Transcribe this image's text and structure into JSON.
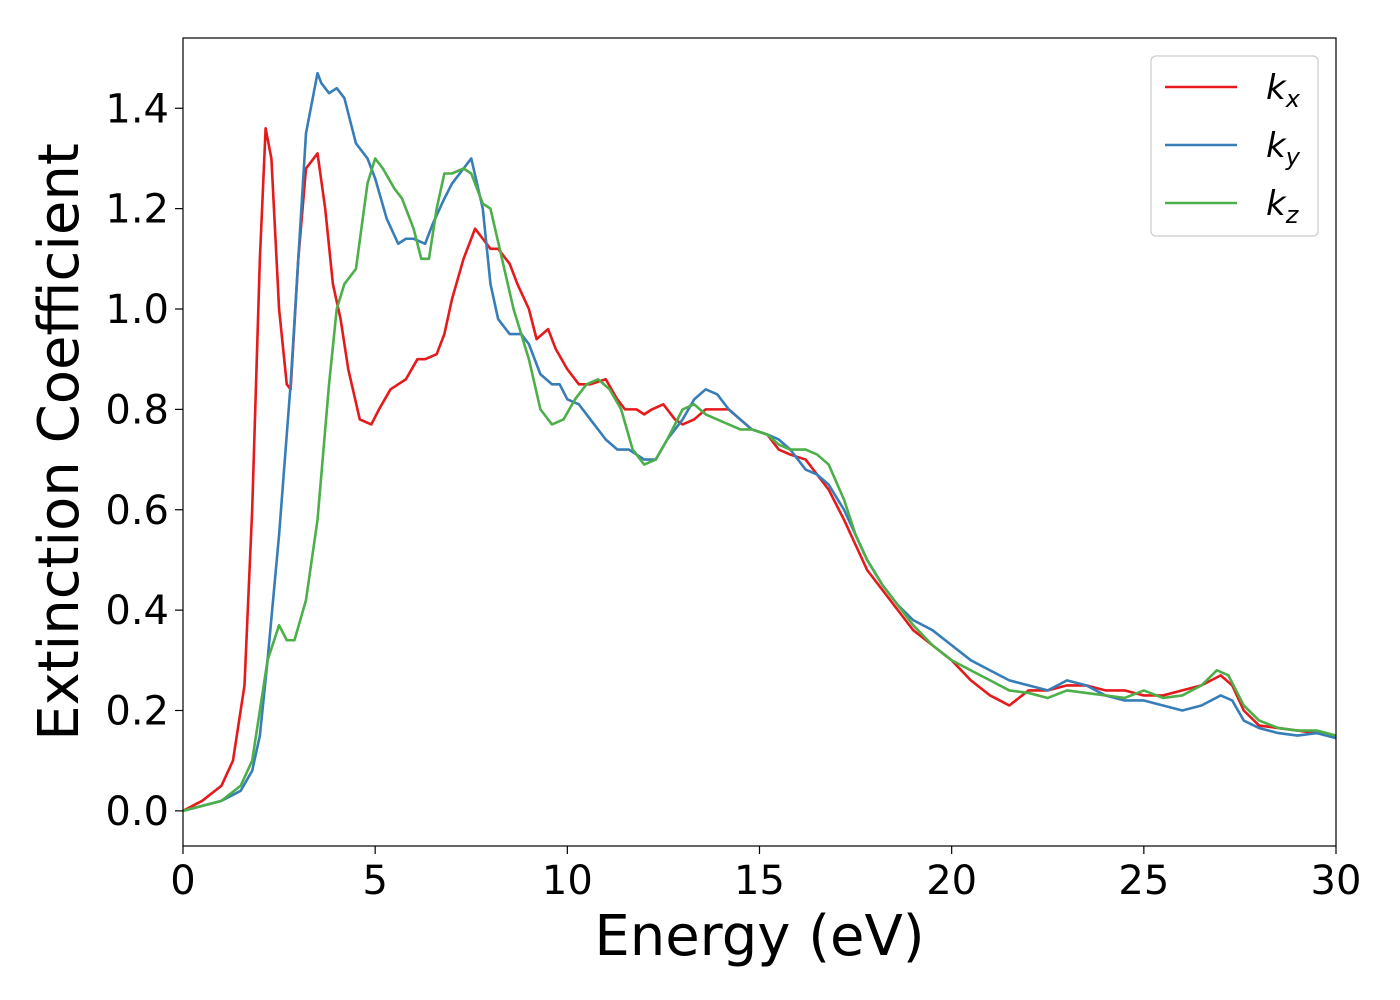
{
  "chart_data": {
    "type": "line",
    "xlabel": "Energy (eV)",
    "ylabel": "Extinction Coefficient",
    "xlim": [
      0,
      30
    ],
    "ylim": [
      -0.07,
      1.54
    ],
    "xticks": [
      0,
      5,
      10,
      15,
      20,
      25,
      30
    ],
    "xtick_labels": [
      "0",
      "5",
      "10",
      "15",
      "20",
      "25",
      "30"
    ],
    "yticks": [
      0.0,
      0.2,
      0.4,
      0.6,
      0.8,
      1.0,
      1.2,
      1.4
    ],
    "ytick_labels": [
      "0.0",
      "0.2",
      "0.4",
      "0.6",
      "0.8",
      "1.0",
      "1.2",
      "1.4"
    ],
    "grid": false,
    "legend_position": "top-right",
    "series": [
      {
        "name": "k_x",
        "label_base": "k",
        "label_sub": "x",
        "color": "#e41a1c",
        "x": [
          0,
          0.5,
          1.0,
          1.3,
          1.6,
          1.8,
          2.0,
          2.15,
          2.3,
          2.5,
          2.7,
          2.8,
          3.0,
          3.2,
          3.5,
          3.7,
          3.9,
          4.1,
          4.3,
          4.6,
          4.9,
          5.1,
          5.4,
          5.6,
          5.8,
          6.1,
          6.3,
          6.6,
          6.8,
          7.0,
          7.3,
          7.6,
          7.8,
          8.0,
          8.2,
          8.5,
          8.7,
          9.0,
          9.2,
          9.5,
          9.7,
          10.0,
          10.3,
          10.6,
          11.0,
          11.3,
          11.5,
          11.8,
          12.0,
          12.2,
          12.5,
          12.8,
          13.0,
          13.3,
          13.6,
          13.9,
          14.2,
          14.5,
          14.8,
          15.2,
          15.5,
          15.8,
          16.2,
          16.5,
          16.8,
          17.2,
          17.5,
          17.8,
          18.2,
          18.6,
          19.0,
          19.5,
          20.0,
          20.5,
          21.0,
          21.5,
          22.0,
          22.5,
          23.0,
          23.5,
          24.0,
          24.5,
          25.0,
          25.5,
          26.0,
          26.5,
          27.0,
          27.3,
          27.6,
          28.0,
          28.5,
          29.0,
          29.5,
          30.0
        ],
        "y": [
          0.0,
          0.02,
          0.05,
          0.1,
          0.25,
          0.6,
          1.1,
          1.36,
          1.3,
          1.0,
          0.85,
          0.84,
          1.1,
          1.28,
          1.31,
          1.2,
          1.05,
          0.98,
          0.88,
          0.78,
          0.77,
          0.8,
          0.84,
          0.85,
          0.86,
          0.9,
          0.9,
          0.91,
          0.95,
          1.02,
          1.1,
          1.16,
          1.14,
          1.12,
          1.12,
          1.09,
          1.05,
          1.0,
          0.94,
          0.96,
          0.92,
          0.88,
          0.85,
          0.85,
          0.86,
          0.82,
          0.8,
          0.8,
          0.79,
          0.8,
          0.81,
          0.78,
          0.77,
          0.78,
          0.8,
          0.8,
          0.8,
          0.78,
          0.76,
          0.75,
          0.72,
          0.71,
          0.7,
          0.67,
          0.64,
          0.58,
          0.53,
          0.48,
          0.44,
          0.4,
          0.36,
          0.33,
          0.3,
          0.26,
          0.23,
          0.21,
          0.24,
          0.24,
          0.25,
          0.25,
          0.24,
          0.24,
          0.23,
          0.23,
          0.24,
          0.25,
          0.27,
          0.25,
          0.2,
          0.17,
          0.165,
          0.16,
          0.155,
          0.15
        ]
      },
      {
        "name": "k_y",
        "label_base": "k",
        "label_sub": "y",
        "color": "#377eb8",
        "x": [
          0,
          0.5,
          1.0,
          1.5,
          1.8,
          2.0,
          2.2,
          2.5,
          2.8,
          3.0,
          3.2,
          3.5,
          3.6,
          3.8,
          4.0,
          4.2,
          4.5,
          4.8,
          5.0,
          5.3,
          5.6,
          5.8,
          6.0,
          6.3,
          6.5,
          6.8,
          7.0,
          7.3,
          7.5,
          7.8,
          8.0,
          8.2,
          8.5,
          8.8,
          9.0,
          9.3,
          9.6,
          9.8,
          10.0,
          10.3,
          10.6,
          11.0,
          11.3,
          11.6,
          12.0,
          12.3,
          12.6,
          13.0,
          13.3,
          13.6,
          13.9,
          14.2,
          14.5,
          14.8,
          15.2,
          15.5,
          15.8,
          16.2,
          16.5,
          16.8,
          17.2,
          17.5,
          17.8,
          18.2,
          18.6,
          19.0,
          19.5,
          20.0,
          20.5,
          21.0,
          21.5,
          22.0,
          22.5,
          23.0,
          23.5,
          24.0,
          24.5,
          25.0,
          25.5,
          26.0,
          26.5,
          27.0,
          27.3,
          27.6,
          28.0,
          28.5,
          29.0,
          29.5,
          30.0
        ],
        "y": [
          0.0,
          0.01,
          0.02,
          0.04,
          0.08,
          0.15,
          0.3,
          0.55,
          0.85,
          1.1,
          1.35,
          1.47,
          1.45,
          1.43,
          1.44,
          1.42,
          1.33,
          1.3,
          1.26,
          1.18,
          1.13,
          1.14,
          1.14,
          1.13,
          1.17,
          1.22,
          1.25,
          1.28,
          1.3,
          1.2,
          1.05,
          0.98,
          0.95,
          0.95,
          0.93,
          0.87,
          0.85,
          0.85,
          0.82,
          0.81,
          0.78,
          0.74,
          0.72,
          0.72,
          0.7,
          0.7,
          0.74,
          0.78,
          0.82,
          0.84,
          0.83,
          0.8,
          0.78,
          0.76,
          0.75,
          0.74,
          0.72,
          0.68,
          0.67,
          0.65,
          0.6,
          0.55,
          0.5,
          0.45,
          0.41,
          0.38,
          0.36,
          0.33,
          0.3,
          0.28,
          0.26,
          0.25,
          0.24,
          0.26,
          0.25,
          0.23,
          0.22,
          0.22,
          0.21,
          0.2,
          0.21,
          0.23,
          0.22,
          0.18,
          0.165,
          0.155,
          0.15,
          0.155,
          0.145
        ]
      },
      {
        "name": "k_z",
        "label_base": "k",
        "label_sub": "z",
        "color": "#4daf4a",
        "x": [
          0,
          0.5,
          1.0,
          1.5,
          1.8,
          2.0,
          2.2,
          2.5,
          2.7,
          2.9,
          3.2,
          3.5,
          3.8,
          4.0,
          4.2,
          4.5,
          4.8,
          5.0,
          5.2,
          5.5,
          5.7,
          6.0,
          6.2,
          6.4,
          6.6,
          6.8,
          7.0,
          7.3,
          7.5,
          7.8,
          8.0,
          8.3,
          8.6,
          9.0,
          9.3,
          9.6,
          9.9,
          10.2,
          10.5,
          10.8,
          11.1,
          11.4,
          11.7,
          12.0,
          12.3,
          12.6,
          13.0,
          13.3,
          13.6,
          13.9,
          14.2,
          14.5,
          14.8,
          15.2,
          15.5,
          15.8,
          16.2,
          16.5,
          16.8,
          17.2,
          17.5,
          17.8,
          18.2,
          18.6,
          19.0,
          19.5,
          20.0,
          20.5,
          21.0,
          21.5,
          22.0,
          22.5,
          23.0,
          23.5,
          24.0,
          24.5,
          25.0,
          25.5,
          26.0,
          26.5,
          26.9,
          27.2,
          27.6,
          28.0,
          28.5,
          29.0,
          29.5,
          30.0
        ],
        "y": [
          0.0,
          0.01,
          0.02,
          0.05,
          0.1,
          0.2,
          0.3,
          0.37,
          0.34,
          0.34,
          0.42,
          0.58,
          0.85,
          1.0,
          1.05,
          1.08,
          1.25,
          1.3,
          1.28,
          1.24,
          1.22,
          1.16,
          1.1,
          1.1,
          1.2,
          1.27,
          1.27,
          1.28,
          1.27,
          1.21,
          1.2,
          1.1,
          1.0,
          0.9,
          0.8,
          0.77,
          0.78,
          0.82,
          0.85,
          0.86,
          0.84,
          0.8,
          0.72,
          0.69,
          0.7,
          0.74,
          0.8,
          0.81,
          0.79,
          0.78,
          0.77,
          0.76,
          0.76,
          0.75,
          0.73,
          0.72,
          0.72,
          0.71,
          0.69,
          0.62,
          0.55,
          0.5,
          0.45,
          0.41,
          0.37,
          0.33,
          0.3,
          0.28,
          0.26,
          0.24,
          0.235,
          0.225,
          0.24,
          0.235,
          0.23,
          0.225,
          0.24,
          0.225,
          0.23,
          0.25,
          0.28,
          0.27,
          0.21,
          0.18,
          0.165,
          0.16,
          0.16,
          0.15
        ]
      }
    ]
  }
}
